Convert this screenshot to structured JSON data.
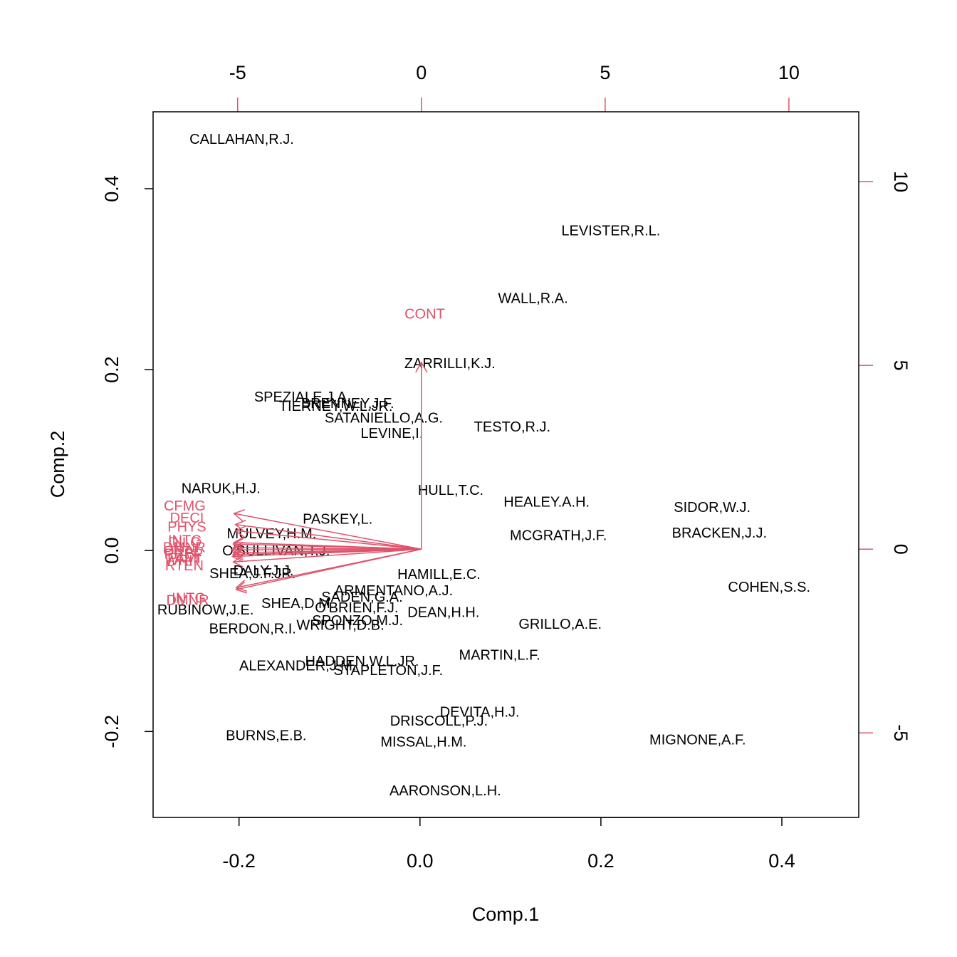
{
  "chart_data": {
    "type": "scatter",
    "subtype": "biplot",
    "title": "",
    "xlabel": "Comp.1",
    "ylabel": "Comp.2",
    "xlim": [
      -0.295,
      0.485
    ],
    "ylim": [
      -0.295,
      0.485
    ],
    "xticks": [
      "-0.2",
      "0.0",
      "0.2",
      "0.4"
    ],
    "yticks": [
      "-0.2",
      "0.0",
      "0.2",
      "0.4"
    ],
    "xtick_values": [
      -0.2,
      0.0,
      0.2,
      0.4
    ],
    "ytick_values": [
      -0.2,
      0.0,
      0.2,
      0.4
    ],
    "top_axis": {
      "ticks": [
        "-5",
        "0",
        "5",
        "10"
      ],
      "values": [
        -5,
        0,
        5,
        10
      ],
      "lim": [
        -7.3,
        11.9
      ]
    },
    "right_axis": {
      "ticks": [
        "-5",
        "0",
        "5",
        "10"
      ],
      "values": [
        -5,
        0,
        5,
        10
      ],
      "lim": [
        -7.3,
        11.9
      ]
    },
    "vector_color": "#DF536B",
    "point_color": "#000000",
    "points": [
      {
        "label": "CALLAHAN,R.J.",
        "x": -0.197,
        "y": 0.455
      },
      {
        "label": "LEVISTER,R.L.",
        "x": 0.211,
        "y": 0.354
      },
      {
        "label": "WALL,R.A.",
        "x": 0.125,
        "y": 0.279
      },
      {
        "label": "ZARRILLI,K.J.",
        "x": 0.033,
        "y": 0.207
      },
      {
        "label": "SPEZIALE,J.A.",
        "x": -0.13,
        "y": 0.17
      },
      {
        "label": "BRENNEY,J.F.",
        "x": -0.08,
        "y": 0.163
      },
      {
        "label": "TIERNEY,W.L.JR.",
        "x": -0.093,
        "y": 0.16
      },
      {
        "label": "SATANIELLO,A.G.",
        "x": -0.04,
        "y": 0.147
      },
      {
        "label": "TESTO,R.J.",
        "x": 0.102,
        "y": 0.137
      },
      {
        "label": "LEVINE,I.",
        "x": -0.031,
        "y": 0.13
      },
      {
        "label": "NARUK,H.J.",
        "x": -0.22,
        "y": 0.069
      },
      {
        "label": "HULL,T.C.",
        "x": 0.034,
        "y": 0.067
      },
      {
        "label": "HEALEY.A.H.",
        "x": 0.14,
        "y": 0.054
      },
      {
        "label": "SIDOR,W.J.",
        "x": 0.323,
        "y": 0.048
      },
      {
        "label": "PASKEY,L.",
        "x": -0.091,
        "y": 0.035
      },
      {
        "label": "MULVEY,H.M.",
        "x": -0.164,
        "y": 0.019
      },
      {
        "label": "BRACKEN,J.J.",
        "x": 0.331,
        "y": 0.02
      },
      {
        "label": "MCGRATH,J.F.",
        "x": 0.153,
        "y": 0.017
      },
      {
        "label": "O'SULLIVAN,T.J.",
        "x": -0.159,
        "y": 0.0
      },
      {
        "label": "DALY,J.J.",
        "x": -0.173,
        "y": -0.022
      },
      {
        "label": "SHEA,J.F.JR.",
        "x": -0.185,
        "y": -0.025
      },
      {
        "label": "HAMILL,E.C.",
        "x": 0.021,
        "y": -0.026
      },
      {
        "label": "COHEN,S.S.",
        "x": 0.386,
        "y": -0.04
      },
      {
        "label": "ARMENTANO,A.J.",
        "x": -0.029,
        "y": -0.044
      },
      {
        "label": "SADEN,G.A.",
        "x": -0.064,
        "y": -0.051
      },
      {
        "label": "SHEA,D.M.",
        "x": -0.135,
        "y": -0.058
      },
      {
        "label": "O'BRIEN,F.J.",
        "x": -0.07,
        "y": -0.063
      },
      {
        "label": "DEAN,H.H.",
        "x": 0.026,
        "y": -0.068
      },
      {
        "label": "RUBINOW,J.E.",
        "x": -0.237,
        "y": -0.065
      },
      {
        "label": "SPONZO,M.J.",
        "x": -0.069,
        "y": -0.077
      },
      {
        "label": "WRIGHT,D.B.",
        "x": -0.088,
        "y": -0.082
      },
      {
        "label": "GRILLO,A.E.",
        "x": 0.155,
        "y": -0.081
      },
      {
        "label": "BERDON,R.I.",
        "x": -0.185,
        "y": -0.086
      },
      {
        "label": "MARTIN,L.F.",
        "x": 0.088,
        "y": -0.115
      },
      {
        "label": "HADDEN,W.L.JR.",
        "x": -0.064,
        "y": -0.122
      },
      {
        "label": "ALEXANDER,J.M.",
        "x": -0.135,
        "y": -0.127
      },
      {
        "label": "STAPLETON,J.F.",
        "x": -0.035,
        "y": -0.132
      },
      {
        "label": "DEVITA,H.J.",
        "x": 0.066,
        "y": -0.178
      },
      {
        "label": "DRISCOLL,P.J.",
        "x": 0.021,
        "y": -0.188
      },
      {
        "label": "BURNS,E.B.",
        "x": -0.17,
        "y": -0.204
      },
      {
        "label": "MISSAL,H.M.",
        "x": 0.004,
        "y": -0.211
      },
      {
        "label": "MIGNONE,A.F.",
        "x": 0.307,
        "y": -0.209
      },
      {
        "label": "AARONSON,L.H.",
        "x": 0.028,
        "y": -0.265
      }
    ],
    "vectors": [
      {
        "label": "CONT",
        "x": 0.0,
        "y": 5.08,
        "label_x": 0.09,
        "label_y": 6.41
      },
      {
        "label": "CFMG",
        "x": -5.1,
        "y": 0.97,
        "label_x": -6.44,
        "label_y": 1.19
      },
      {
        "label": "DECI",
        "x": -5.06,
        "y": 0.67,
        "label_x": -6.38,
        "label_y": 0.86
      },
      {
        "label": "PHYS",
        "x": -5.06,
        "y": 0.5,
        "label_x": -6.38,
        "label_y": 0.61
      },
      {
        "label": "INTG",
        "x": -5.1,
        "y": 0.18,
        "label_x": -6.43,
        "label_y": 0.25
      },
      {
        "label": "DILG",
        "x": -5.12,
        "y": 0.14,
        "label_x": -6.44,
        "label_y": 0.19
      },
      {
        "label": "DMNR",
        "x": -5.12,
        "y": 0.04,
        "label_x": -6.45,
        "label_y": 0.05
      },
      {
        "label": "PREP",
        "x": -5.12,
        "y": -0.1,
        "label_x": -6.47,
        "label_y": -0.12
      },
      {
        "label": "FAMI",
        "x": -5.13,
        "y": -0.15,
        "label_x": -6.46,
        "label_y": -0.24
      },
      {
        "label": "ORAL",
        "x": -5.16,
        "y": -0.02,
        "label_x": -6.5,
        "label_y": -0.04
      },
      {
        "label": "WRIT",
        "x": -5.14,
        "y": -0.2,
        "label_x": -6.48,
        "label_y": -0.3
      },
      {
        "label": "RTEN",
        "x": -5.12,
        "y": -0.35,
        "label_x": -6.45,
        "label_y": -0.44
      },
      {
        "label": "INTG",
        "x": -5.04,
        "y": -1.05,
        "label_x": -6.33,
        "label_y": -1.32
      },
      {
        "label": "DMNR",
        "x": -5.04,
        "y": -1.1,
        "label_x": -6.36,
        "label_y": -1.38
      }
    ]
  }
}
